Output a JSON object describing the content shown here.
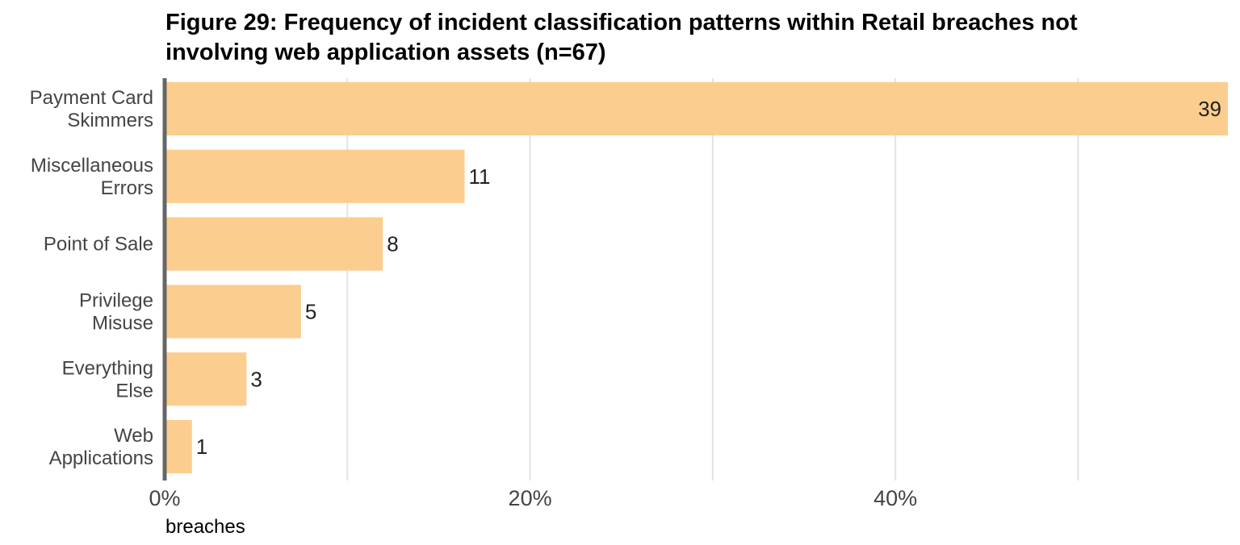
{
  "chart_data": {
    "type": "bar",
    "orientation": "horizontal",
    "title_lines": [
      "Figure 29: Frequency of incident classification patterns within Retail breaches not",
      "involving web application assets (n=67)"
    ],
    "categories": [
      [
        "Payment Card",
        "Skimmers"
      ],
      [
        "Miscellaneous",
        "Errors"
      ],
      [
        "Point of Sale"
      ],
      [
        "Privilege",
        "Misuse"
      ],
      [
        "Everything",
        "Else"
      ],
      [
        "Web",
        "Applications"
      ]
    ],
    "values": [
      39,
      11,
      8,
      5,
      3,
      1
    ],
    "data_labels": [
      "39",
      "11",
      "8",
      "5",
      "3",
      "1"
    ],
    "total": 67,
    "xlim": [
      0,
      0.582
    ],
    "x_ticks": [
      0,
      0.1,
      0.2,
      0.3,
      0.4,
      0.5
    ],
    "x_tick_labels": [
      "0%",
      "",
      "20%",
      "",
      "40%",
      ""
    ],
    "xlabel": "breaches",
    "bar_color": "#FBCE8F",
    "grid": true,
    "grid_color": "#E3E3E3",
    "axis_color": "#666666"
  }
}
